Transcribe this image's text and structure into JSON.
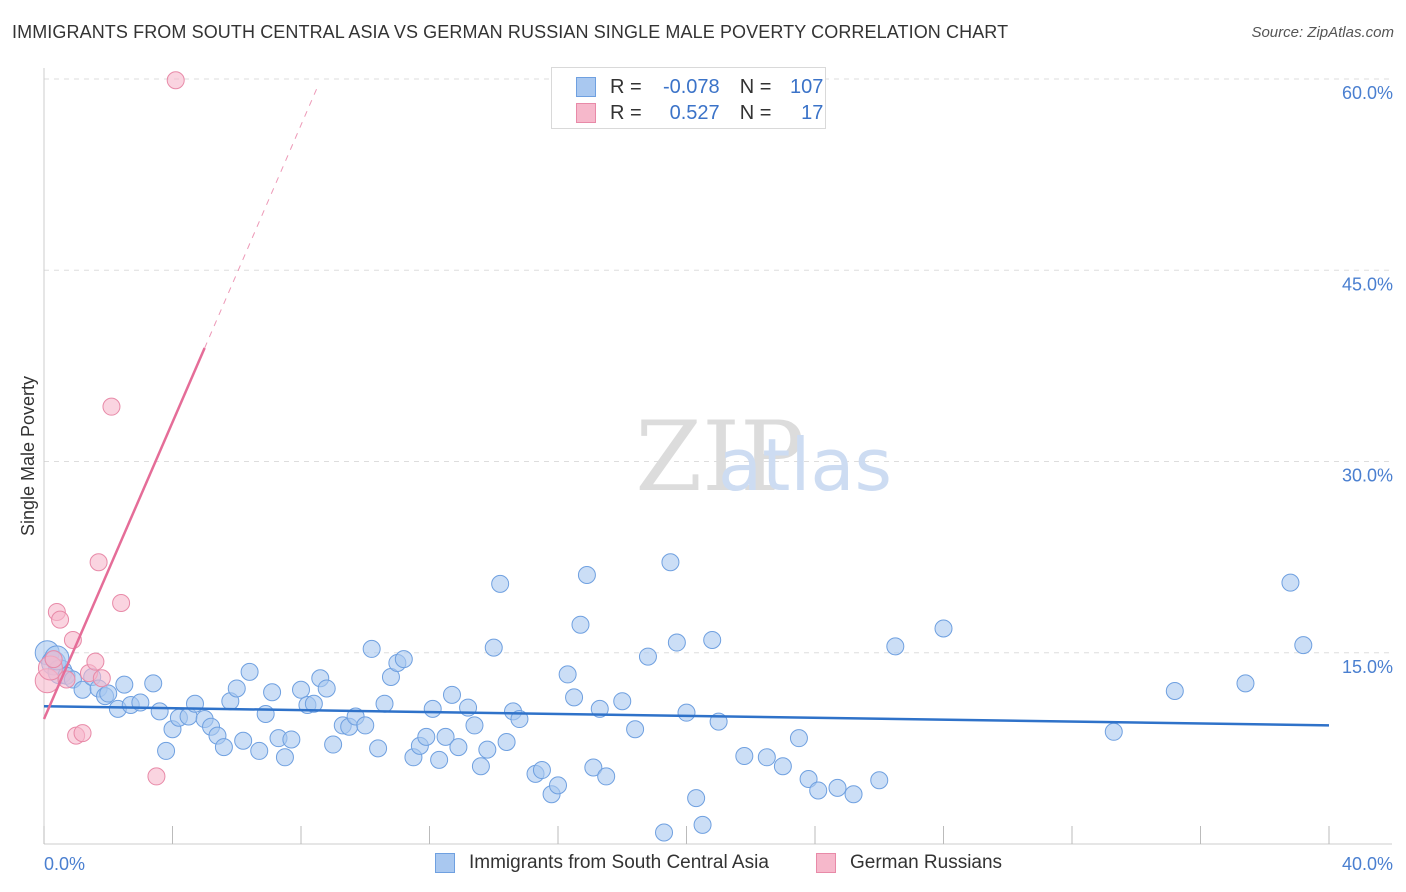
{
  "title": "IMMIGRANTS FROM SOUTH CENTRAL ASIA VS GERMAN RUSSIAN SINGLE MALE POVERTY CORRELATION CHART",
  "source": "Source: ZipAtlas.com",
  "watermark": {
    "zip": "ZIP",
    "atlas": "atlas"
  },
  "legend": {
    "rows": [
      {
        "r_label": "R =",
        "r_value": "-0.078",
        "n_label": "N =",
        "n_value": "107",
        "color": "#a9c8f0",
        "border": "#6fa0e0"
      },
      {
        "r_label": "R =",
        "r_value": "0.527",
        "n_label": "N =",
        "n_value": "17",
        "color": "#f6b8cb",
        "border": "#e88aa8"
      }
    ]
  },
  "bottom_legend": [
    {
      "label": "Immigrants from South Central Asia",
      "color": "#a9c8f0",
      "border": "#6fa0e0"
    },
    {
      "label": "German Russians",
      "color": "#f6b8cb",
      "border": "#e88aa8"
    }
  ],
  "chart_data": {
    "type": "scatter",
    "title": "IMMIGRANTS FROM SOUTH CENTRAL ASIA VS GERMAN RUSSIAN SINGLE MALE POVERTY CORRELATION CHART",
    "xlabel": "",
    "ylabel": "Single Male Poverty",
    "xlim": [
      0,
      40
    ],
    "ylim": [
      0,
      60
    ],
    "x_tick_labels": [
      "0.0%",
      "40.0%"
    ],
    "y_ticks": [
      15,
      30,
      45,
      60
    ],
    "y_tick_labels": [
      "15.0%",
      "30.0%",
      "45.0%",
      "60.0%"
    ],
    "grid": true,
    "series": [
      {
        "name": "Immigrants from South Central Asia",
        "color": "#a9c8f0",
        "stroke": "#6fa0e0",
        "trend": {
          "x1": 0,
          "y1": 10.8,
          "x2": 40,
          "y2": 9.3,
          "color": "#2f72c9"
        },
        "points": [
          [
            0.1,
            15.0
          ],
          [
            0.3,
            14.2
          ],
          [
            0.5,
            13.5
          ],
          [
            0.7,
            13.2
          ],
          [
            0.9,
            12.9
          ],
          [
            1.2,
            12.1
          ],
          [
            1.5,
            13.1
          ],
          [
            1.7,
            12.2
          ],
          [
            1.9,
            11.6
          ],
          [
            2.0,
            11.8
          ],
          [
            2.3,
            10.6
          ],
          [
            2.5,
            12.5
          ],
          [
            2.7,
            10.9
          ],
          [
            3.0,
            11.1
          ],
          [
            3.4,
            12.6
          ],
          [
            3.6,
            10.4
          ],
          [
            3.8,
            7.3
          ],
          [
            4.0,
            9.0
          ],
          [
            4.2,
            9.9
          ],
          [
            4.5,
            10.0
          ],
          [
            4.7,
            11.0
          ],
          [
            5.0,
            9.8
          ],
          [
            5.2,
            9.2
          ],
          [
            5.4,
            8.5
          ],
          [
            5.6,
            7.6
          ],
          [
            5.8,
            11.2
          ],
          [
            6.0,
            12.2
          ],
          [
            6.2,
            8.1
          ],
          [
            6.4,
            13.5
          ],
          [
            6.7,
            7.3
          ],
          [
            6.9,
            10.2
          ],
          [
            7.1,
            11.9
          ],
          [
            7.3,
            8.3
          ],
          [
            7.5,
            6.8
          ],
          [
            7.7,
            8.2
          ],
          [
            8.0,
            12.1
          ],
          [
            8.2,
            10.9
          ],
          [
            8.4,
            11.0
          ],
          [
            8.6,
            13.0
          ],
          [
            8.8,
            12.2
          ],
          [
            9.0,
            7.8
          ],
          [
            9.3,
            9.3
          ],
          [
            9.5,
            9.2
          ],
          [
            9.7,
            10.0
          ],
          [
            10.0,
            9.3
          ],
          [
            10.2,
            15.3
          ],
          [
            10.4,
            7.5
          ],
          [
            10.6,
            11.0
          ],
          [
            10.8,
            13.1
          ],
          [
            11.0,
            14.2
          ],
          [
            11.2,
            14.5
          ],
          [
            11.5,
            6.8
          ],
          [
            11.7,
            7.7
          ],
          [
            11.9,
            8.4
          ],
          [
            12.1,
            10.6
          ],
          [
            12.3,
            6.6
          ],
          [
            12.5,
            8.4
          ],
          [
            12.7,
            11.7
          ],
          [
            12.9,
            7.6
          ],
          [
            13.2,
            10.7
          ],
          [
            13.4,
            9.3
          ],
          [
            13.6,
            6.1
          ],
          [
            13.8,
            7.4
          ],
          [
            14.0,
            15.4
          ],
          [
            14.2,
            20.4
          ],
          [
            14.4,
            8.0
          ],
          [
            14.6,
            10.4
          ],
          [
            14.8,
            9.8
          ],
          [
            15.3,
            5.5
          ],
          [
            15.5,
            5.8
          ],
          [
            15.8,
            3.9
          ],
          [
            16.0,
            4.6
          ],
          [
            16.3,
            13.3
          ],
          [
            16.5,
            11.5
          ],
          [
            16.7,
            17.2
          ],
          [
            16.9,
            21.1
          ],
          [
            17.1,
            6.0
          ],
          [
            17.3,
            10.6
          ],
          [
            17.5,
            5.3
          ],
          [
            18.0,
            11.2
          ],
          [
            18.4,
            9.0
          ],
          [
            18.8,
            14.7
          ],
          [
            19.3,
            0.9
          ],
          [
            19.5,
            22.1
          ],
          [
            19.7,
            15.8
          ],
          [
            20.0,
            10.3
          ],
          [
            20.3,
            3.6
          ],
          [
            20.5,
            1.5
          ],
          [
            20.8,
            16.0
          ],
          [
            21.0,
            9.6
          ],
          [
            21.8,
            6.9
          ],
          [
            22.5,
            6.8
          ],
          [
            23.0,
            6.1
          ],
          [
            23.5,
            8.3
          ],
          [
            23.8,
            5.1
          ],
          [
            24.1,
            4.2
          ],
          [
            24.7,
            4.4
          ],
          [
            25.2,
            3.9
          ],
          [
            26.0,
            5.0
          ],
          [
            26.5,
            15.5
          ],
          [
            28.0,
            16.9
          ],
          [
            33.3,
            8.8
          ],
          [
            35.2,
            12.0
          ],
          [
            37.4,
            12.6
          ],
          [
            38.8,
            20.5
          ],
          [
            39.2,
            15.6
          ],
          [
            0.4,
            14.6
          ]
        ]
      },
      {
        "name": "German Russians",
        "color": "#f6b8cb",
        "stroke": "#e88aa8",
        "trend": {
          "x1": 0,
          "y1": 9.8,
          "x2": 5.0,
          "y2": 38.9,
          "dash_x2": 8.5,
          "dash_y2": 59.3,
          "color": "#e56d98"
        },
        "points": [
          [
            0.1,
            12.8
          ],
          [
            0.2,
            13.8
          ],
          [
            0.3,
            14.5
          ],
          [
            0.4,
            18.2
          ],
          [
            0.5,
            17.6
          ],
          [
            0.7,
            12.9
          ],
          [
            0.9,
            16.0
          ],
          [
            1.0,
            8.5
          ],
          [
            1.2,
            8.7
          ],
          [
            1.4,
            13.4
          ],
          [
            1.6,
            14.3
          ],
          [
            1.7,
            22.1
          ],
          [
            1.8,
            13.0
          ],
          [
            2.1,
            34.3
          ],
          [
            2.4,
            18.9
          ],
          [
            3.5,
            5.3
          ],
          [
            4.1,
            59.9
          ]
        ]
      }
    ]
  }
}
